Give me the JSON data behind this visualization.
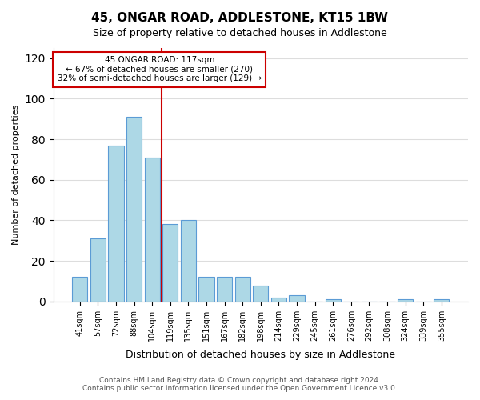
{
  "title": "45, ONGAR ROAD, ADDLESTONE, KT15 1BW",
  "subtitle": "Size of property relative to detached houses in Addlestone",
  "xlabel": "Distribution of detached houses by size in Addlestone",
  "ylabel": "Number of detached properties",
  "categories": [
    "41sqm",
    "57sqm",
    "72sqm",
    "88sqm",
    "104sqm",
    "119sqm",
    "135sqm",
    "151sqm",
    "167sqm",
    "182sqm",
    "198sqm",
    "214sqm",
    "229sqm",
    "245sqm",
    "261sqm",
    "276sqm",
    "292sqm",
    "308sqm",
    "324sqm",
    "339sqm",
    "355sqm"
  ],
  "values": [
    12,
    31,
    77,
    91,
    71,
    38,
    40,
    12,
    12,
    12,
    8,
    2,
    3,
    0,
    1,
    0,
    0,
    0,
    1,
    0,
    1
  ],
  "bar_color": "#add8e6",
  "bar_edge_color": "#5b9bd5",
  "vline_x": 4.5,
  "vline_color": "#cc0000",
  "annotation_text": "45 ONGAR ROAD: 117sqm\n← 67% of detached houses are smaller (270)\n32% of semi-detached houses are larger (129) →",
  "annotation_box_color": "#ffffff",
  "annotation_box_edge_color": "#cc0000",
  "ylim": [
    0,
    125
  ],
  "yticks": [
    0,
    20,
    40,
    60,
    80,
    100,
    120
  ],
  "footer_line1": "Contains HM Land Registry data © Crown copyright and database right 2024.",
  "footer_line2": "Contains public sector information licensed under the Open Government Licence v3.0.",
  "background_color": "#ffffff",
  "grid_color": "#dddddd"
}
